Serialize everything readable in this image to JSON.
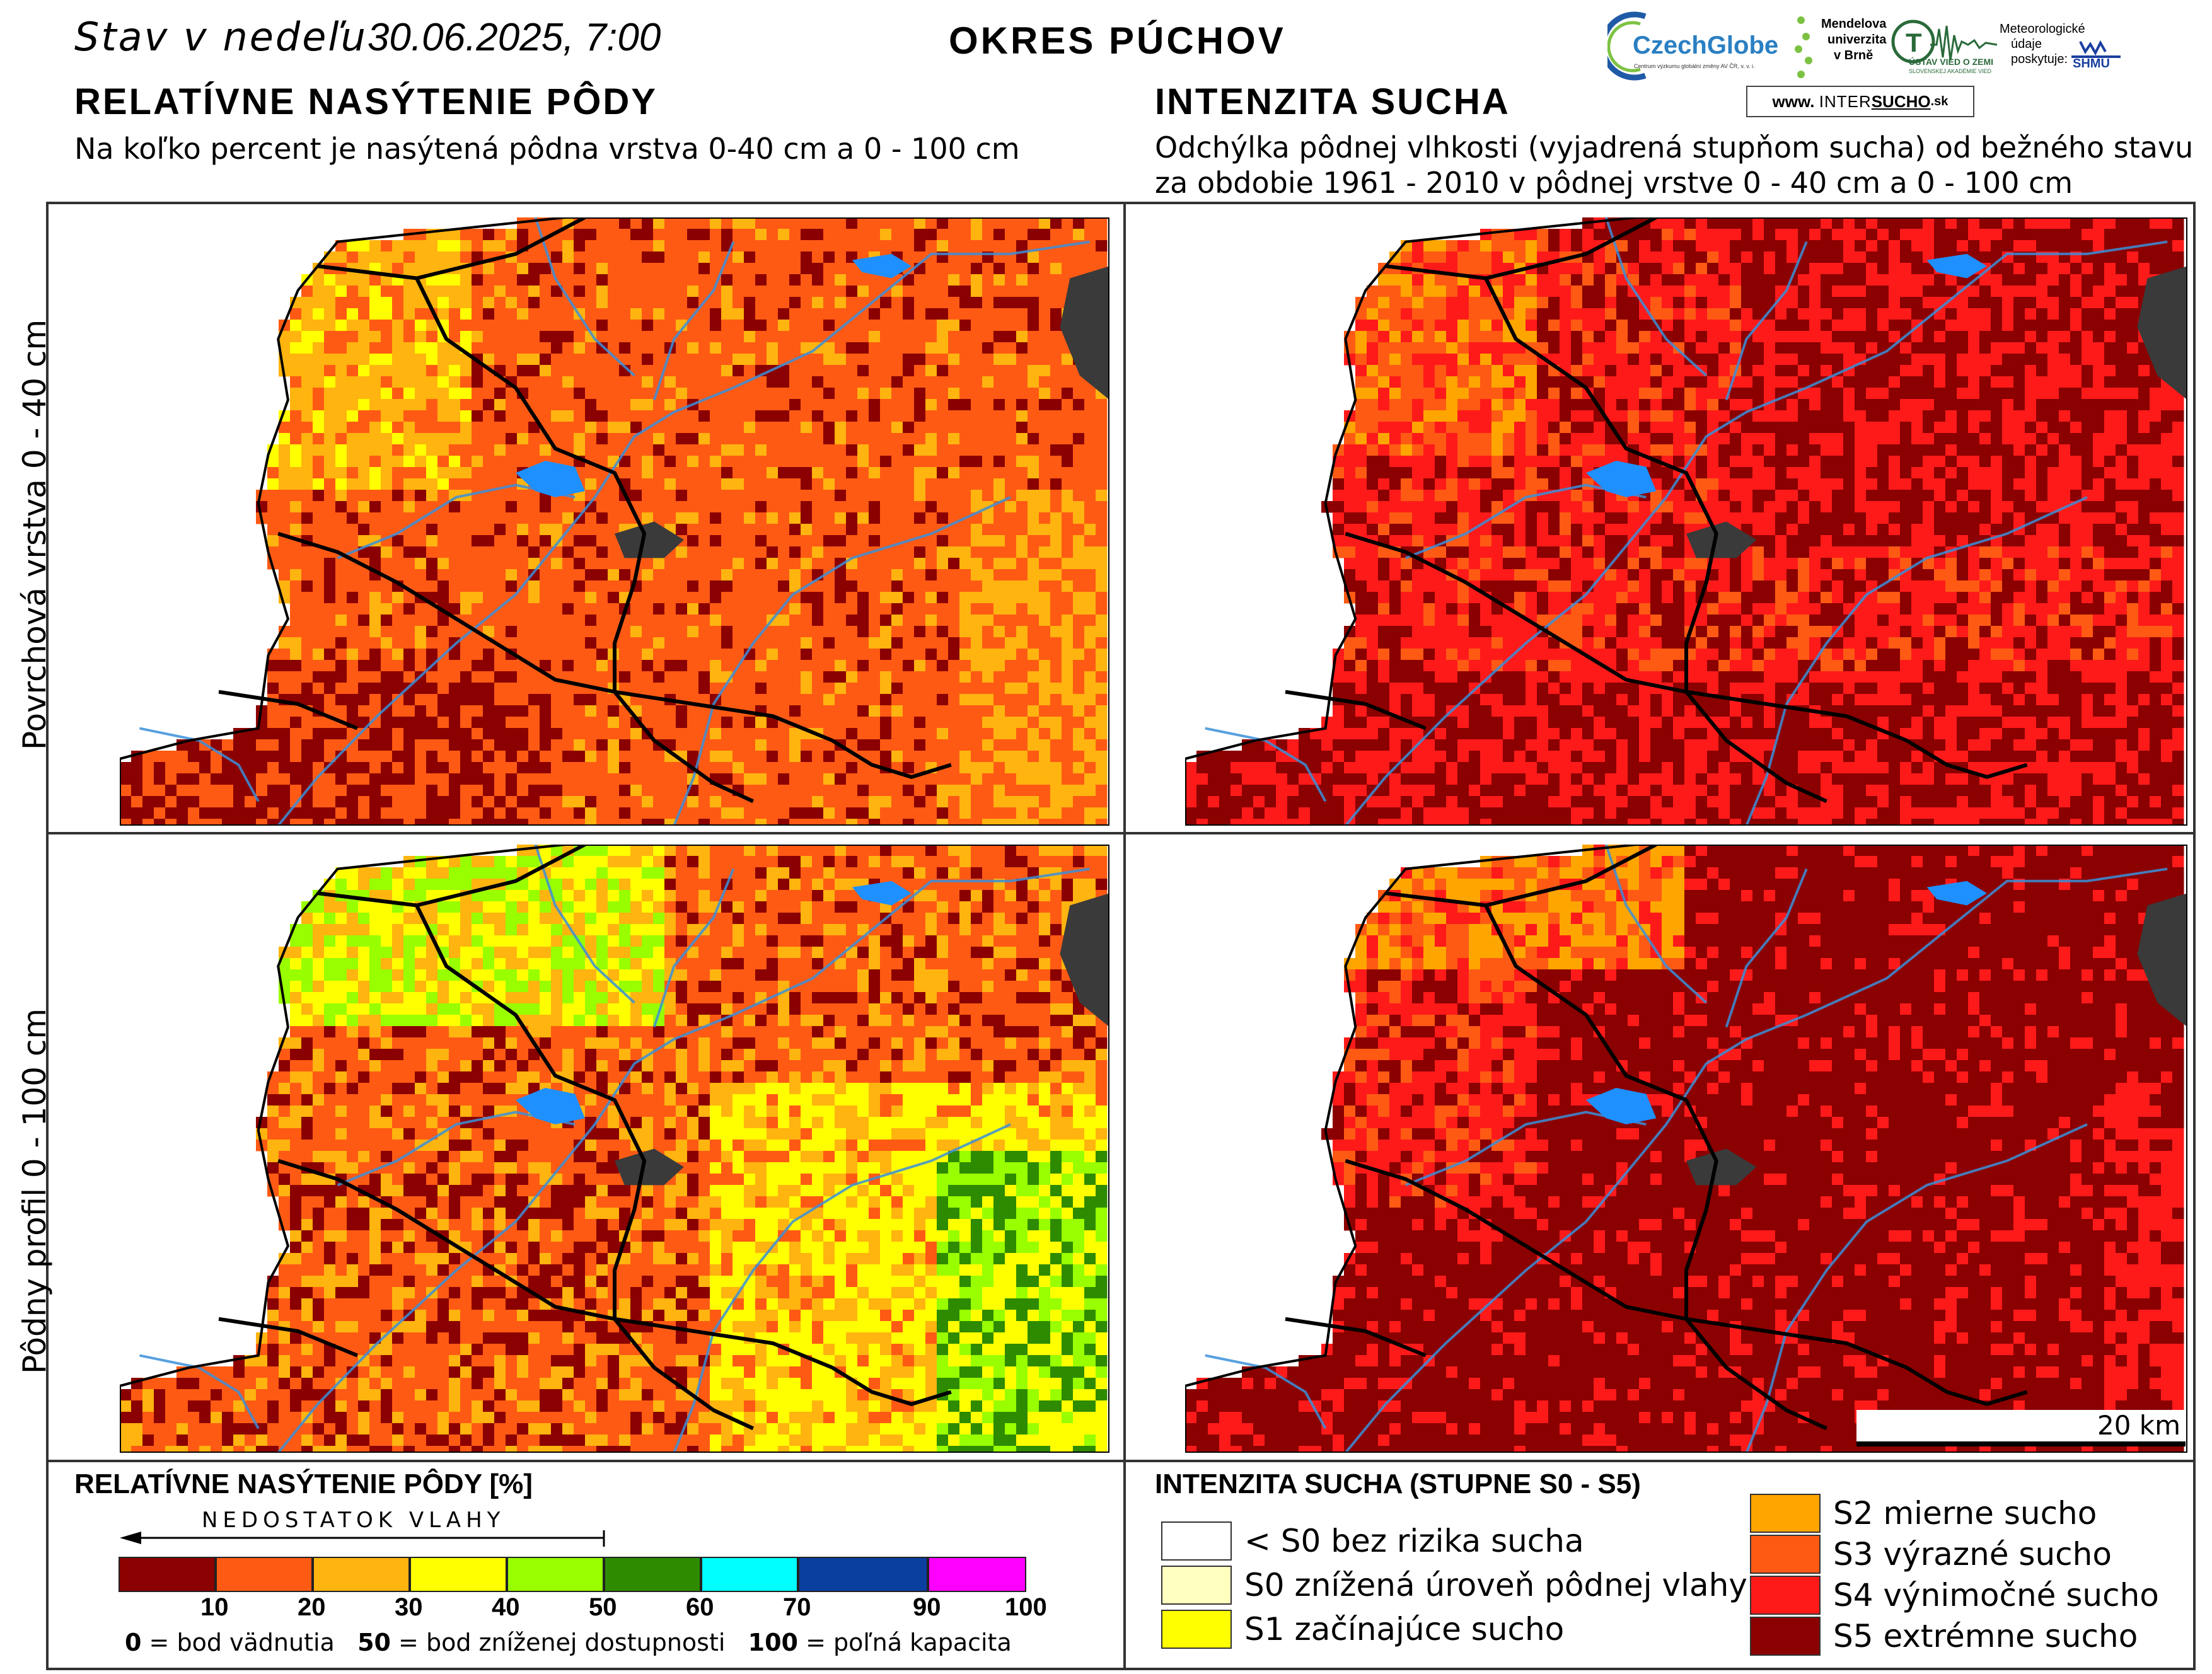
{
  "header": {
    "date_label": "Stav v nedeľu",
    "date_value": "30.06.2025, 7:00",
    "district": "OKRES PÚCHOV"
  },
  "left_section": {
    "title": "RELATÍVNE NASÝTENIE PÔDY",
    "subtitle": "Na koľko percent je nasýtená pôdna vrstva 0-40 cm a 0 - 100 cm"
  },
  "right_section": {
    "title": "INTENZITA SUCHA",
    "subtitle_line1": "Odchýlka pôdnej vlhkosti (vyjadrená stupňom sucha) od bežného stavu",
    "subtitle_line2": "za obdobie 1961 - 2010 v pôdnej vrstve 0 - 40 cm a 0 - 100 cm"
  },
  "logos": {
    "czechglobe": "CzechGlobe",
    "czechglobe_sub": "Centrum výzkumu globální změny AV ČR, v. v. i.",
    "mendel_1": "Mendelova",
    "mendel_2": "univerzita",
    "mendel_3": "v Brně",
    "ustav": "ÚSTAV VIED O ZEMI",
    "ustav_sub": "SLOVENSKEJ AKADÉMIE VIED",
    "meteo_1": "Meteorologické",
    "meteo_2": "údaje",
    "meteo_3": "poskytuje:",
    "shmu": "SHMÚ",
    "intersucho_pre": "www.",
    "intersucho_a": "INTER",
    "intersucho_b": "SUCHO",
    "intersucho_c": ".sk"
  },
  "row_labels": {
    "top": "Povrchová vrstva 0 - 40 cm",
    "bottom": "Pôdny profil 0 - 100 cm"
  },
  "scale_bar": "20 km",
  "colors": {
    "s5": "#8b0000",
    "s4": "#ff1a1a",
    "s3": "#ff5a14",
    "s2": "#ffa500",
    "s1": "#ffff00",
    "s0": "#ffffc0",
    "none": "#ffffff",
    "c10": "#8b0000",
    "c20": "#ff5a14",
    "c30": "#ffb40f",
    "c40": "#ffff00",
    "c50": "#99ff00",
    "c60": "#2e8b00",
    "c70": "#00ffff",
    "c90": "#0a3fa0",
    "c100": "#ff00ff",
    "river": "#3a8fd9",
    "lake": "#1e90ff",
    "town": "#3a3a3a"
  },
  "legend_left": {
    "title": "RELATÍVNE NASÝTENIE PÔDY [%]",
    "arrow_label": "NEDOSTATOK VLAHY",
    "ticks": [
      "10",
      "20",
      "30",
      "40",
      "50",
      "60",
      "70",
      "90",
      "100"
    ],
    "note_0_num": "0",
    "note_0_text": " = bod vädnutia",
    "note_50_num": "50",
    "note_50_text": " = bod zníženej dostupnosti",
    "note_100_num": "100",
    "note_100_text": " = poľná kapacita"
  },
  "legend_right": {
    "title": "INTENZITA SUCHA (STUPNE S0 - S5)",
    "items_left": [
      {
        "label": "< S0 bez rizika sucha",
        "color": "#ffffff"
      },
      {
        "label": "S0 znížená úroveň pôdnej vlahy",
        "color": "#ffffc0"
      },
      {
        "label": "S1 začínajúce sucho",
        "color": "#ffff00"
      }
    ],
    "items_right": [
      {
        "label": "S2 mierne sucho",
        "color": "#ffa500"
      },
      {
        "label": "S3 výrazné sucho",
        "color": "#ff5a14"
      },
      {
        "label": "S4 výnimočné sucho",
        "color": "#ff1a1a"
      },
      {
        "label": "S5 extrémne sucho",
        "color": "#8b0000"
      }
    ]
  }
}
